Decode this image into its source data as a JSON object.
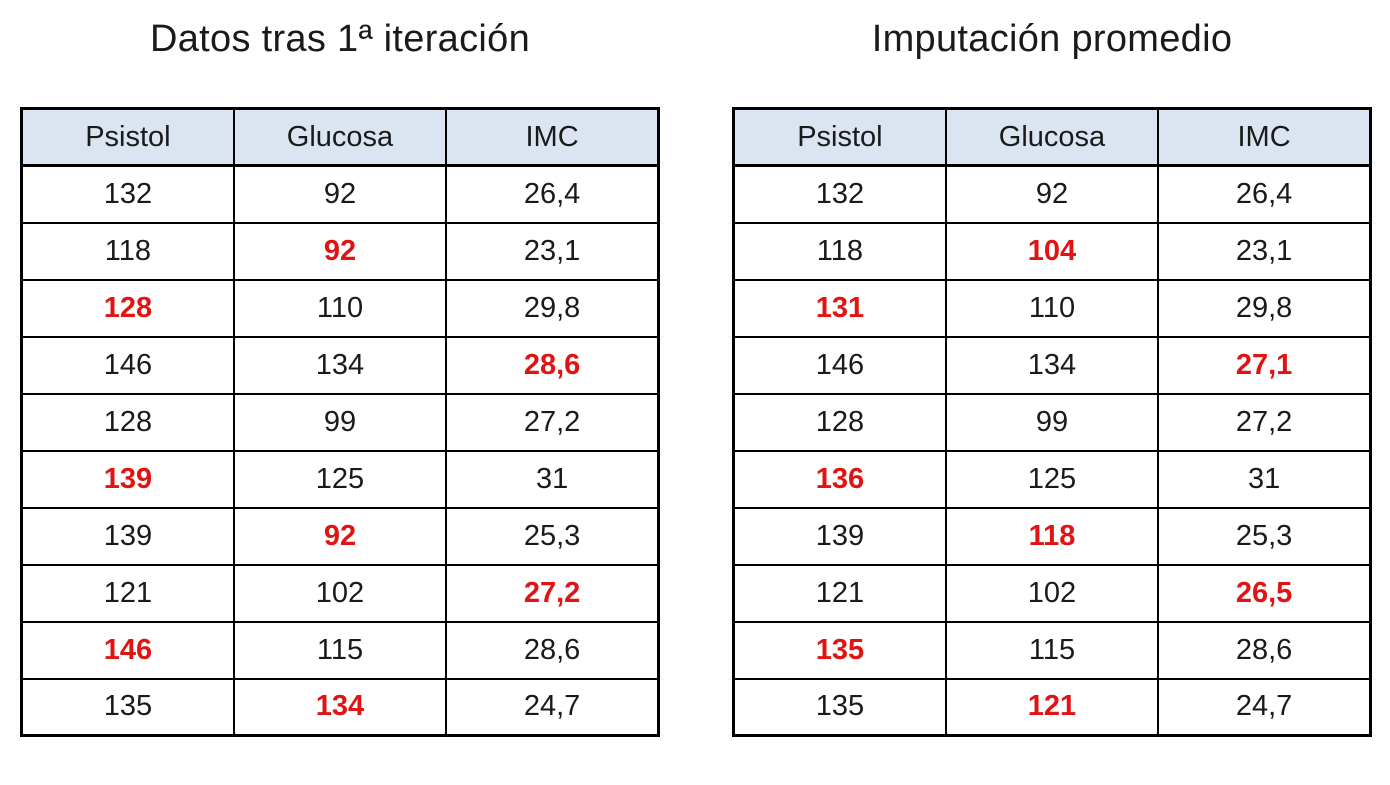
{
  "page": {
    "background": "#ffffff"
  },
  "colors": {
    "header_bg": "#dbe5f1",
    "border": "#000000",
    "text": "#1a1a1a",
    "imputed_red": "#e11414"
  },
  "chart_data": [
    {
      "type": "table",
      "title": "Datos tras 1ª iteración",
      "columns": [
        "Psistol",
        "Glucosa",
        "IMC"
      ],
      "legend_note": "red bold values = imputed/changed values",
      "rows": [
        [
          {
            "value": "132",
            "imputed": false
          },
          {
            "value": "92",
            "imputed": false
          },
          {
            "value": "26,4",
            "imputed": false
          }
        ],
        [
          {
            "value": "118",
            "imputed": false
          },
          {
            "value": "92",
            "imputed": true
          },
          {
            "value": "23,1",
            "imputed": false
          }
        ],
        [
          {
            "value": "128",
            "imputed": true
          },
          {
            "value": "110",
            "imputed": false
          },
          {
            "value": "29,8",
            "imputed": false
          }
        ],
        [
          {
            "value": "146",
            "imputed": false
          },
          {
            "value": "134",
            "imputed": false
          },
          {
            "value": "28,6",
            "imputed": true
          }
        ],
        [
          {
            "value": "128",
            "imputed": false
          },
          {
            "value": "99",
            "imputed": false
          },
          {
            "value": "27,2",
            "imputed": false
          }
        ],
        [
          {
            "value": "139",
            "imputed": true
          },
          {
            "value": "125",
            "imputed": false
          },
          {
            "value": "31",
            "imputed": false
          }
        ],
        [
          {
            "value": "139",
            "imputed": false
          },
          {
            "value": "92",
            "imputed": true
          },
          {
            "value": "25,3",
            "imputed": false
          }
        ],
        [
          {
            "value": "121",
            "imputed": false
          },
          {
            "value": "102",
            "imputed": false
          },
          {
            "value": "27,2",
            "imputed": true
          }
        ],
        [
          {
            "value": "146",
            "imputed": true
          },
          {
            "value": "115",
            "imputed": false
          },
          {
            "value": "28,6",
            "imputed": false
          }
        ],
        [
          {
            "value": "135",
            "imputed": false
          },
          {
            "value": "134",
            "imputed": true
          },
          {
            "value": "24,7",
            "imputed": false
          }
        ]
      ]
    },
    {
      "type": "table",
      "title": "Imputación promedio",
      "columns": [
        "Psistol",
        "Glucosa",
        "IMC"
      ],
      "legend_note": "red bold values = imputed/changed values",
      "rows": [
        [
          {
            "value": "132",
            "imputed": false
          },
          {
            "value": "92",
            "imputed": false
          },
          {
            "value": "26,4",
            "imputed": false
          }
        ],
        [
          {
            "value": "118",
            "imputed": false
          },
          {
            "value": "104",
            "imputed": true
          },
          {
            "value": "23,1",
            "imputed": false
          }
        ],
        [
          {
            "value": "131",
            "imputed": true
          },
          {
            "value": "110",
            "imputed": false
          },
          {
            "value": "29,8",
            "imputed": false
          }
        ],
        [
          {
            "value": "146",
            "imputed": false
          },
          {
            "value": "134",
            "imputed": false
          },
          {
            "value": "27,1",
            "imputed": true
          }
        ],
        [
          {
            "value": "128",
            "imputed": false
          },
          {
            "value": "99",
            "imputed": false
          },
          {
            "value": "27,2",
            "imputed": false
          }
        ],
        [
          {
            "value": "136",
            "imputed": true
          },
          {
            "value": "125",
            "imputed": false
          },
          {
            "value": "31",
            "imputed": false
          }
        ],
        [
          {
            "value": "139",
            "imputed": false
          },
          {
            "value": "118",
            "imputed": true
          },
          {
            "value": "25,3",
            "imputed": false
          }
        ],
        [
          {
            "value": "121",
            "imputed": false
          },
          {
            "value": "102",
            "imputed": false
          },
          {
            "value": "26,5",
            "imputed": true
          }
        ],
        [
          {
            "value": "135",
            "imputed": true
          },
          {
            "value": "115",
            "imputed": false
          },
          {
            "value": "28,6",
            "imputed": false
          }
        ],
        [
          {
            "value": "135",
            "imputed": false
          },
          {
            "value": "121",
            "imputed": true
          },
          {
            "value": "24,7",
            "imputed": false
          }
        ]
      ]
    }
  ]
}
